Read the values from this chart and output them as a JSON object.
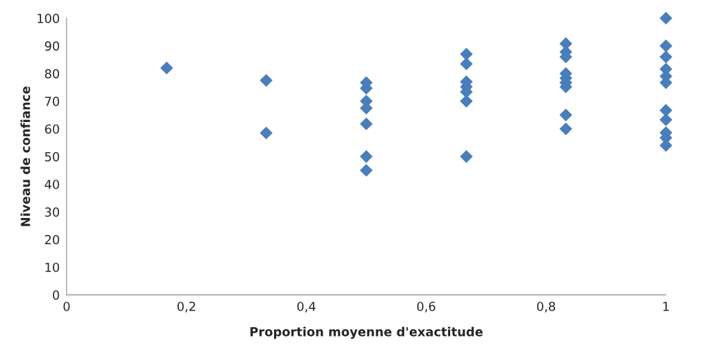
{
  "chart_data": {
    "type": "scatter",
    "xlabel": "Proportion moyenne d'exactitude",
    "ylabel": "Niveau de confiance",
    "marker": "diamond",
    "grid": false,
    "legend": false,
    "series": [
      {
        "color": "#4a7ebb",
        "x": [
          0.167,
          0.333,
          0.333,
          0.5,
          0.5,
          0.5,
          0.5,
          0.5,
          0.5,
          0.5,
          0.667,
          0.667,
          0.667,
          0.667,
          0.667,
          0.667,
          0.667,
          0.833,
          0.833,
          0.833,
          0.833,
          0.833,
          0.833,
          0.833,
          0.833,
          0.833,
          1,
          1,
          1,
          1,
          1,
          1,
          1,
          1,
          1,
          1,
          1
        ],
        "values": [
          82,
          77.5,
          58.5,
          76.7,
          74.7,
          70,
          67.5,
          61.8,
          50,
          45,
          87,
          83.5,
          77,
          75.2,
          73.4,
          70,
          50,
          90.8,
          87.8,
          86,
          80,
          78.3,
          76.7,
          75.2,
          65,
          60,
          100,
          90,
          86,
          81.6,
          79,
          76.7,
          66.7,
          63.3,
          58.6,
          56.8,
          54
        ]
      }
    ],
    "xlim": [
      0,
      1
    ],
    "xticks": [
      0,
      {
        "value": 0.2,
        "label": "0,2"
      },
      {
        "value": 0.4,
        "label": "0,4"
      },
      {
        "value": 0.6,
        "label": "0,6"
      },
      {
        "value": 0.8,
        "label": "0,8"
      },
      1
    ],
    "ylim": [
      0,
      100
    ],
    "yticks": [
      0,
      10,
      20,
      30,
      40,
      50,
      60,
      70,
      80,
      90,
      100
    ]
  }
}
